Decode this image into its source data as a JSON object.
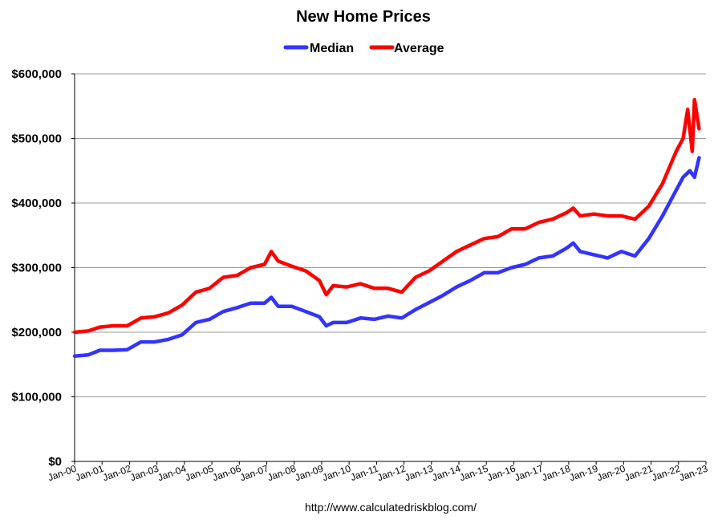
{
  "chart_data": {
    "type": "line",
    "title": "New Home Prices",
    "source": "http://www.calculatedriskblog.com/",
    "legend_position": "top-center",
    "grid": true,
    "ylim": [
      0,
      600000
    ],
    "yticks": [
      0,
      100000,
      200000,
      300000,
      400000,
      500000,
      600000
    ],
    "ytick_labels": [
      "$0",
      "$100,000",
      "$200,000",
      "$300,000",
      "$400,000",
      "$500,000",
      "$600,000"
    ],
    "xlim": [
      "2000-01",
      "2023-01"
    ],
    "xtick_labels": [
      "Jan-00",
      "Jan-01",
      "Jan-02",
      "Jan-03",
      "Jan-04",
      "Jan-05",
      "Jan-06",
      "Jan-07",
      "Jan-08",
      "Jan-09",
      "Jan-10",
      "Jan-11",
      "Jan-12",
      "Jan-13",
      "Jan-14",
      "Jan-15",
      "Jan-16",
      "Jan-17",
      "Jan-18",
      "Jan-19",
      "Jan-20",
      "Jan-21",
      "Jan-22",
      "Jan-23"
    ],
    "series": [
      {
        "name": "Median",
        "color": "#3333ff",
        "points": [
          [
            "2000-01",
            163000
          ],
          [
            "2000-07",
            165000
          ],
          [
            "2000-12",
            172000
          ],
          [
            "2001-06",
            172000
          ],
          [
            "2001-12",
            173000
          ],
          [
            "2002-06",
            185000
          ],
          [
            "2002-12",
            185000
          ],
          [
            "2003-06",
            189000
          ],
          [
            "2003-12",
            196000
          ],
          [
            "2004-06",
            215000
          ],
          [
            "2004-12",
            220000
          ],
          [
            "2005-06",
            232000
          ],
          [
            "2005-12",
            238000
          ],
          [
            "2006-06",
            245000
          ],
          [
            "2006-12",
            245000
          ],
          [
            "2007-03",
            254000
          ],
          [
            "2007-06",
            240000
          ],
          [
            "2007-12",
            240000
          ],
          [
            "2008-06",
            232000
          ],
          [
            "2008-12",
            224000
          ],
          [
            "2009-03",
            210000
          ],
          [
            "2009-06",
            215000
          ],
          [
            "2009-12",
            215000
          ],
          [
            "2010-06",
            222000
          ],
          [
            "2010-12",
            220000
          ],
          [
            "2011-06",
            225000
          ],
          [
            "2011-12",
            222000
          ],
          [
            "2012-06",
            235000
          ],
          [
            "2012-12",
            246000
          ],
          [
            "2013-06",
            257000
          ],
          [
            "2013-12",
            270000
          ],
          [
            "2014-06",
            280000
          ],
          [
            "2014-12",
            292000
          ],
          [
            "2015-06",
            292000
          ],
          [
            "2015-12",
            300000
          ],
          [
            "2016-06",
            305000
          ],
          [
            "2016-12",
            315000
          ],
          [
            "2017-06",
            318000
          ],
          [
            "2017-12",
            330000
          ],
          [
            "2018-03",
            338000
          ],
          [
            "2018-06",
            325000
          ],
          [
            "2018-12",
            320000
          ],
          [
            "2019-06",
            315000
          ],
          [
            "2019-12",
            325000
          ],
          [
            "2020-06",
            318000
          ],
          [
            "2020-12",
            345000
          ],
          [
            "2021-06",
            380000
          ],
          [
            "2021-12",
            420000
          ],
          [
            "2022-03",
            440000
          ],
          [
            "2022-06",
            450000
          ],
          [
            "2022-08",
            440000
          ],
          [
            "2022-10",
            470000
          ]
        ]
      },
      {
        "name": "Average",
        "color": "#ff0000",
        "points": [
          [
            "2000-01",
            200000
          ],
          [
            "2000-07",
            202000
          ],
          [
            "2000-12",
            208000
          ],
          [
            "2001-06",
            210000
          ],
          [
            "2001-12",
            210000
          ],
          [
            "2002-06",
            222000
          ],
          [
            "2002-12",
            224000
          ],
          [
            "2003-06",
            230000
          ],
          [
            "2003-12",
            242000
          ],
          [
            "2004-06",
            262000
          ],
          [
            "2004-12",
            268000
          ],
          [
            "2005-06",
            285000
          ],
          [
            "2005-12",
            288000
          ],
          [
            "2006-06",
            300000
          ],
          [
            "2006-12",
            305000
          ],
          [
            "2007-03",
            325000
          ],
          [
            "2007-06",
            310000
          ],
          [
            "2007-12",
            302000
          ],
          [
            "2008-06",
            295000
          ],
          [
            "2008-12",
            280000
          ],
          [
            "2009-03",
            258000
          ],
          [
            "2009-06",
            272000
          ],
          [
            "2009-12",
            270000
          ],
          [
            "2010-06",
            275000
          ],
          [
            "2010-12",
            268000
          ],
          [
            "2011-06",
            268000
          ],
          [
            "2011-12",
            262000
          ],
          [
            "2012-06",
            285000
          ],
          [
            "2012-12",
            295000
          ],
          [
            "2013-06",
            310000
          ],
          [
            "2013-12",
            325000
          ],
          [
            "2014-06",
            335000
          ],
          [
            "2014-12",
            345000
          ],
          [
            "2015-06",
            348000
          ],
          [
            "2015-12",
            360000
          ],
          [
            "2016-06",
            360000
          ],
          [
            "2016-12",
            370000
          ],
          [
            "2017-06",
            375000
          ],
          [
            "2017-12",
            385000
          ],
          [
            "2018-03",
            392000
          ],
          [
            "2018-06",
            380000
          ],
          [
            "2018-12",
            383000
          ],
          [
            "2019-06",
            380000
          ],
          [
            "2019-12",
            380000
          ],
          [
            "2020-06",
            375000
          ],
          [
            "2020-12",
            395000
          ],
          [
            "2021-06",
            430000
          ],
          [
            "2021-12",
            480000
          ],
          [
            "2022-03",
            500000
          ],
          [
            "2022-05",
            545000
          ],
          [
            "2022-07",
            480000
          ],
          [
            "2022-08",
            560000
          ],
          [
            "2022-10",
            515000
          ]
        ]
      }
    ]
  }
}
